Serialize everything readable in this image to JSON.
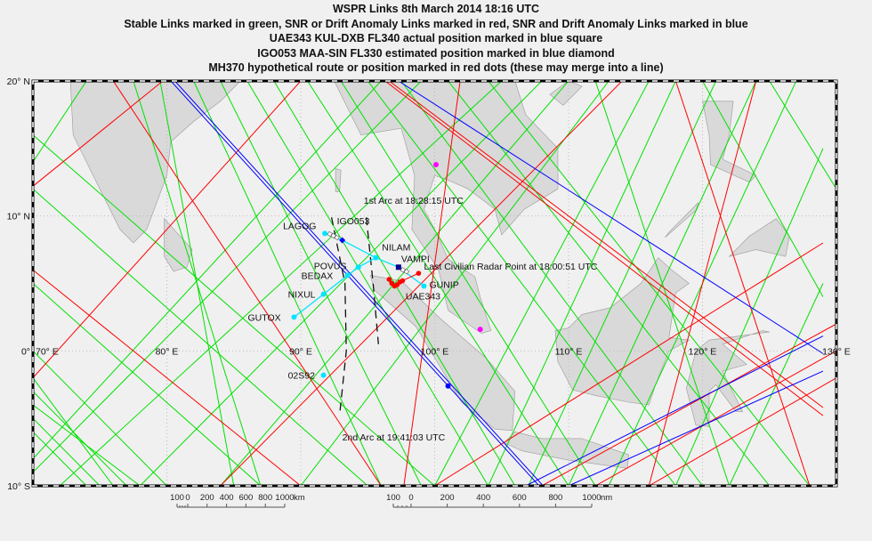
{
  "titles": [
    "WSPR Links 8th March 2014 18:16 UTC",
    "Stable Links marked in green, SNR or Drift Anomaly Links marked in red, SNR and Drift Anomaly Links marked in blue",
    "UAE343 KUL-DXB FL340 actual position marked in blue square",
    "IGO053 MAA-SIN FL330 estimated position marked in blue diamond",
    "MH370 hypothetical route or position marked in red dots (these may merge into a line)"
  ],
  "map": {
    "lon_range": [
      70,
      130
    ],
    "lat_range": [
      -10,
      20
    ],
    "grid_step": 10,
    "lon_labels": [
      "70° E",
      "80° E",
      "90° E",
      "100° E",
      "110° E",
      "120° E",
      "130° E"
    ],
    "lon_label_values": [
      70,
      80,
      90,
      100,
      110,
      120,
      130
    ],
    "lat_labels": [
      "20° N",
      "10° N",
      "0°",
      "10° S"
    ],
    "lat_label_values": [
      20,
      10,
      0,
      -10
    ],
    "colors": {
      "stable": "#00e000",
      "anomaly": "#ff0000",
      "both": "#0000ff",
      "route": "#00e5ff",
      "land": "#d9d9d9",
      "coast": "#999999",
      "magenta": "#ff00ff"
    },
    "land": [
      [
        [
          70,
          20
        ],
        [
          72.8,
          20
        ],
        [
          73,
          16
        ],
        [
          74.5,
          13
        ],
        [
          76.5,
          9
        ],
        [
          77.5,
          8
        ],
        [
          78.5,
          9
        ],
        [
          80,
          13
        ],
        [
          80.3,
          15.5
        ],
        [
          82,
          17
        ],
        [
          84,
          18.5
        ],
        [
          85.5,
          20
        ]
      ],
      [
        [
          79.8,
          9.8
        ],
        [
          81.9,
          7.5
        ],
        [
          81.5,
          6.2
        ],
        [
          80.5,
          5.9
        ],
        [
          79.8,
          7
        ]
      ],
      [
        [
          92.5,
          20
        ],
        [
          94.5,
          16
        ],
        [
          97.5,
          16.5
        ],
        [
          98.5,
          13
        ],
        [
          98.3,
          9
        ],
        [
          100.3,
          6
        ],
        [
          101,
          3
        ],
        [
          103.5,
          1.3
        ],
        [
          104.2,
          1.5
        ],
        [
          103.4,
          4
        ],
        [
          103,
          5.5
        ],
        [
          101,
          6.8
        ],
        [
          100,
          9
        ],
        [
          99.2,
          10.5
        ],
        [
          100,
          13
        ],
        [
          100.9,
          12.7
        ],
        [
          102.5,
          12
        ],
        [
          104.5,
          10.5
        ],
        [
          105,
          8.6
        ],
        [
          106.7,
          10.5
        ],
        [
          109.2,
          12
        ],
        [
          109.2,
          15
        ],
        [
          106.8,
          17.5
        ],
        [
          106,
          20
        ]
      ],
      [
        [
          95.2,
          5.6
        ],
        [
          97.5,
          5.2
        ],
        [
          100.3,
          2.5
        ],
        [
          103.8,
          -0.5
        ],
        [
          106,
          -3
        ],
        [
          105.8,
          -5.9
        ],
        [
          104.5,
          -5.8
        ],
        [
          102,
          -3.8
        ],
        [
          100.3,
          -1
        ],
        [
          98.6,
          1.8
        ],
        [
          95.5,
          4.5
        ]
      ],
      [
        [
          105.2,
          -6.8
        ],
        [
          106,
          -6
        ],
        [
          108,
          -6.5
        ],
        [
          111,
          -6.5
        ],
        [
          114.5,
          -7.7
        ],
        [
          114.4,
          -8.7
        ],
        [
          110,
          -8.1
        ],
        [
          106.5,
          -7.4
        ]
      ],
      [
        [
          109,
          1.5
        ],
        [
          110,
          1.7
        ],
        [
          111,
          2.7
        ],
        [
          113.1,
          3.2
        ],
        [
          115.4,
          5
        ],
        [
          116.7,
          6.9
        ],
        [
          117.7,
          6
        ],
        [
          119,
          5
        ],
        [
          118,
          4.3
        ],
        [
          117.5,
          1
        ],
        [
          119,
          0.8
        ],
        [
          117.5,
          0
        ],
        [
          116.5,
          -2.5
        ],
        [
          116,
          -4
        ],
        [
          114.5,
          -3.8
        ],
        [
          112,
          -3.3
        ],
        [
          110.3,
          -2.9
        ],
        [
          109.2,
          -0.8
        ]
      ],
      [
        [
          119.5,
          -5.5
        ],
        [
          120.5,
          -5.6
        ],
        [
          120.5,
          -3
        ],
        [
          121,
          -2.5
        ],
        [
          122.5,
          -4.5
        ],
        [
          123,
          -4.5
        ],
        [
          121.5,
          -1.5
        ],
        [
          123.3,
          -1
        ],
        [
          121.5,
          0.5
        ],
        [
          124.5,
          1.5
        ],
        [
          125,
          1.4
        ],
        [
          120.5,
          0.8
        ],
        [
          119.5,
          0
        ],
        [
          118.8,
          -2.8
        ]
      ],
      [
        [
          120,
          18.5
        ],
        [
          122.3,
          18.5
        ],
        [
          122,
          16
        ],
        [
          121.5,
          14.2
        ],
        [
          124,
          13
        ],
        [
          123.5,
          12.5
        ],
        [
          120.6,
          13.8
        ],
        [
          120.5,
          16
        ]
      ],
      [
        [
          122,
          7
        ],
        [
          124,
          7.5
        ],
        [
          126.2,
          7
        ],
        [
          126.5,
          8.5
        ],
        [
          125.5,
          9.8
        ],
        [
          123.5,
          8.5
        ]
      ],
      [
        [
          117.2,
          8.4
        ],
        [
          119.5,
          10.4
        ],
        [
          119.7,
          11
        ],
        [
          117.5,
          8.8
        ]
      ],
      [
        [
          108.6,
          19
        ],
        [
          110,
          20
        ],
        [
          111,
          19.6
        ],
        [
          109.6,
          18.2
        ]
      ],
      [
        [
          92.6,
          13.5
        ],
        [
          93,
          13.4
        ],
        [
          92.9,
          11.8
        ],
        [
          92.6,
          11.8
        ]
      ]
    ],
    "links": {
      "stable": [
        [
          [
            77.5,
            20
          ],
          [
            87,
            -10
          ]
        ],
        [
          [
            79.5,
            20
          ],
          [
            85,
            -10
          ]
        ],
        [
          [
            82,
            20
          ],
          [
            96,
            -10
          ]
        ],
        [
          [
            84,
            20
          ],
          [
            99,
            -10
          ]
        ],
        [
          [
            86,
            20
          ],
          [
            104,
            -10
          ]
        ],
        [
          [
            88,
            20
          ],
          [
            106,
            -10
          ]
        ],
        [
          [
            90.5,
            20
          ],
          [
            110,
            -10
          ]
        ],
        [
          [
            93,
            20
          ],
          [
            112,
            -10
          ]
        ],
        [
          [
            95,
            20
          ],
          [
            118,
            -10
          ]
        ],
        [
          [
            97.5,
            20
          ],
          [
            120,
            -10
          ]
        ],
        [
          [
            101,
            20
          ],
          [
            125,
            -10
          ]
        ],
        [
          [
            104,
            20
          ],
          [
            128,
            -10
          ]
        ],
        [
          [
            96,
            20
          ],
          [
            70,
            -8
          ]
        ],
        [
          [
            99,
            20
          ],
          [
            70,
            -9
          ]
        ],
        [
          [
            105,
            20
          ],
          [
            72,
            -10
          ]
        ],
        [
          [
            108,
            20
          ],
          [
            78,
            -10
          ]
        ],
        [
          [
            110,
            20
          ],
          [
            84,
            -10
          ]
        ],
        [
          [
            113,
            20
          ],
          [
            90,
            -10
          ]
        ],
        [
          [
            116,
            20
          ],
          [
            100,
            -10
          ]
        ],
        [
          [
            118,
            20
          ],
          [
            104,
            -10
          ]
        ],
        [
          [
            121,
            20
          ],
          [
            107,
            -10
          ]
        ],
        [
          [
            124,
            20
          ],
          [
            110,
            -10
          ]
        ],
        [
          [
            127,
            20
          ],
          [
            113,
            -10
          ]
        ],
        [
          [
            129,
            15
          ],
          [
            118,
            -10
          ]
        ],
        [
          [
            129,
            5
          ],
          [
            122,
            -10
          ]
        ],
        [
          [
            70,
            16
          ],
          [
            100,
            -10
          ]
        ],
        [
          [
            70,
            12
          ],
          [
            95,
            -10
          ]
        ],
        [
          [
            70,
            5
          ],
          [
            87,
            -10
          ]
        ],
        [
          [
            70,
            0
          ],
          [
            80,
            -10
          ]
        ],
        [
          [
            70,
            -3
          ],
          [
            77,
            -10
          ]
        ],
        [
          [
            70,
            -5
          ],
          [
            75,
            -10
          ]
        ],
        [
          [
            70,
            -6
          ],
          [
            74,
            -10
          ]
        ],
        [
          [
            70,
            -4
          ],
          [
            78,
            -10
          ]
        ],
        [
          [
            70,
            -2
          ],
          [
            76,
            -10
          ]
        ],
        [
          [
            120,
            20
          ],
          [
            129,
            4
          ]
        ],
        [
          [
            125,
            20
          ],
          [
            130,
            12
          ]
        ],
        [
          [
            112,
            20
          ],
          [
            122,
            -10
          ]
        ],
        [
          [
            74,
            20
          ],
          [
            70,
            14
          ]
        ]
      ],
      "anomaly": [
        [
          [
            70,
            12.2
          ],
          [
            79.7,
            20
          ]
        ],
        [
          [
            84,
            -10
          ],
          [
            114,
            20
          ]
        ],
        [
          [
            97.7,
            -10
          ],
          [
            101.9,
            20
          ]
        ],
        [
          [
            76,
            20
          ],
          [
            96,
            -10
          ]
        ],
        [
          [
            96.3,
            20
          ],
          [
            129,
            -4.8
          ]
        ],
        [
          [
            96.6,
            20
          ],
          [
            129,
            -4.2
          ]
        ],
        [
          [
            70,
            6
          ],
          [
            90,
            -10
          ]
        ],
        [
          [
            108,
            -10
          ],
          [
            130,
            2
          ]
        ],
        [
          [
            112,
            -10
          ],
          [
            130,
            0
          ]
        ],
        [
          [
            116,
            -10
          ],
          [
            130,
            -2
          ]
        ],
        [
          [
            100,
            -10
          ],
          [
            129,
            8
          ]
        ],
        [
          [
            118,
            20
          ],
          [
            128,
            -10
          ]
        ],
        [
          [
            124,
            20
          ],
          [
            116,
            -10
          ]
        ],
        [
          [
            90,
            20
          ],
          [
            70,
            -2
          ]
        ]
      ],
      "both": [
        [
          [
            80.3,
            20
          ],
          [
            107.8,
            -10
          ]
        ],
        [
          [
            80.6,
            20
          ],
          [
            108.1,
            -10
          ]
        ],
        [
          [
            97.3,
            20
          ],
          [
            129,
            -0.2
          ]
        ],
        [
          [
            106.8,
            -10
          ],
          [
            129,
            1.1
          ]
        ],
        [
          [
            110,
            -10
          ],
          [
            129,
            -1.5
          ]
        ]
      ]
    },
    "route": {
      "lines": [
        [
          [
            91.8,
            8.7
          ],
          [
            93.1,
            8.2
          ],
          [
            95.6,
            6.9
          ],
          [
            97.3,
            6.2
          ],
          [
            99.2,
            4.8
          ]
        ],
        [
          [
            89.5,
            2.5
          ],
          [
            91.7,
            4.2
          ],
          [
            93.5,
            5.6
          ],
          [
            94.3,
            6.2
          ],
          [
            95.6,
            6.9
          ]
        ]
      ],
      "waypoints": [
        {
          "name": "LAGOG",
          "lon": 91.8,
          "lat": 8.7
        },
        {
          "name": "NILAM",
          "lon": 95.6,
          "lat": 6.9
        },
        {
          "name": "VAMPI",
          "lon": 97.3,
          "lat": 6.2
        },
        {
          "name": "GUNIP",
          "lon": 99.2,
          "lat": 4.8
        },
        {
          "name": "POVUS",
          "lon": 94.3,
          "lat": 6.2
        },
        {
          "name": "BEDAX",
          "lon": 93.5,
          "lat": 5.6
        },
        {
          "name": "NIXUL",
          "lon": 91.7,
          "lat": 4.2
        },
        {
          "name": "GUTOX",
          "lon": 89.5,
          "lat": 2.5
        },
        {
          "name": "02S92",
          "lon": 91.7,
          "lat": -1.8
        }
      ]
    },
    "aircraft": {
      "igo053": {
        "label": "IGO053",
        "lon": 93.1,
        "lat": 8.2
      },
      "uae343": {
        "label": "UAE343",
        "lon": 97.3,
        "lat": 6.2
      }
    },
    "mh370_dots": [
      [
        96.6,
        5.3
      ],
      [
        96.8,
        5.0
      ],
      [
        97.0,
        4.8
      ],
      [
        97.2,
        4.9
      ],
      [
        97.4,
        5.1
      ],
      [
        97.6,
        5.2
      ],
      [
        98.8,
        5.75
      ]
    ],
    "last_radar": {
      "label": "Last Civilian Radar Point at 18:00:51 UTC",
      "lon": 98.8,
      "lat": 5.75
    },
    "magenta_points": [
      [
        100.1,
        13.8
      ],
      [
        103.4,
        1.6
      ]
    ],
    "blue_points": [
      [
        101,
        -2.6
      ]
    ],
    "arcs": [
      {
        "label": "1st Arc at 18:28:15 UTC",
        "points": [
          [
            94.9,
            9.9
          ],
          [
            95.4,
            5
          ],
          [
            95.8,
            0.5
          ]
        ]
      },
      {
        "label": "2nd Arc at 19:41:03 UTC",
        "points": [
          [
            92.3,
            9.9
          ],
          [
            93.3,
            5
          ],
          [
            93.4,
            0
          ],
          [
            92.9,
            -4.8
          ]
        ]
      }
    ],
    "scales": {
      "km": {
        "ticks": [
          "100",
          "0",
          "200",
          "400",
          "600",
          "800",
          "1000"
        ],
        "unit": "km"
      },
      "nm": {
        "ticks": [
          "100",
          "0",
          "200",
          "400",
          "600",
          "800",
          "1000"
        ],
        "unit": "nm"
      }
    }
  }
}
